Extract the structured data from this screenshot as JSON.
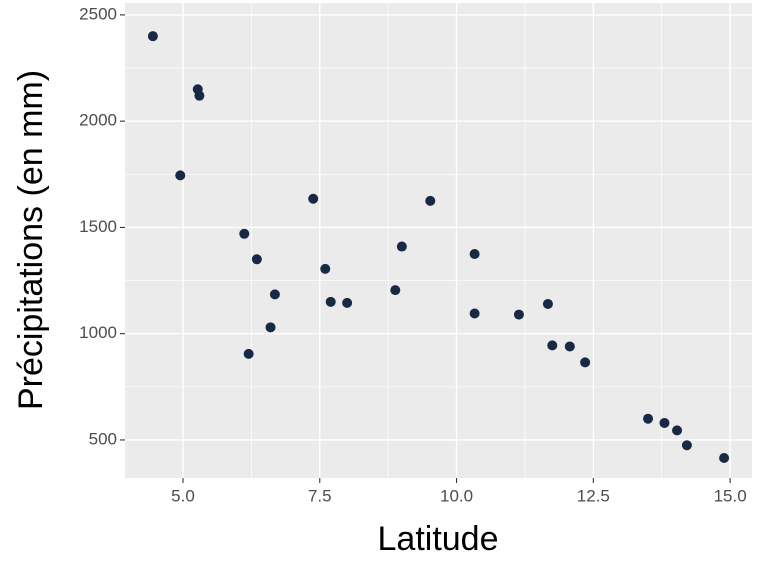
{
  "chart_data": {
    "type": "scatter",
    "x_label": "Latitude",
    "y_label": "Précipitations (en mm)",
    "x": [
      4.45,
      5.27,
      5.3,
      4.95,
      6.12,
      6.35,
      6.2,
      6.6,
      6.68,
      7.38,
      7.6,
      7.7,
      8.0,
      8.88,
      9.0,
      9.52,
      10.33,
      10.33,
      11.14,
      11.67,
      11.75,
      12.07,
      12.35,
      13.5,
      13.8,
      14.03,
      14.21,
      14.89
    ],
    "values": [
      2400,
      2150,
      2120,
      1745,
      1470,
      1350,
      905,
      1030,
      1185,
      1635,
      1305,
      1150,
      1145,
      1205,
      1410,
      1625,
      1375,
      1095,
      1090,
      1140,
      945,
      940,
      865,
      600,
      580,
      545,
      475,
      415
    ],
    "color": "#172944",
    "xlim": [
      3.94,
      15.4
    ],
    "ylim": [
      321,
      2556
    ],
    "xticks": [
      {
        "value": 5,
        "label": "5.0"
      },
      7.5,
      {
        "value": 10,
        "label": "10.0"
      },
      12.5,
      {
        "value": 15,
        "label": "15.0"
      }
    ],
    "yticks": [
      500,
      1000,
      1500,
      2000,
      2500
    ],
    "grid": true
  }
}
